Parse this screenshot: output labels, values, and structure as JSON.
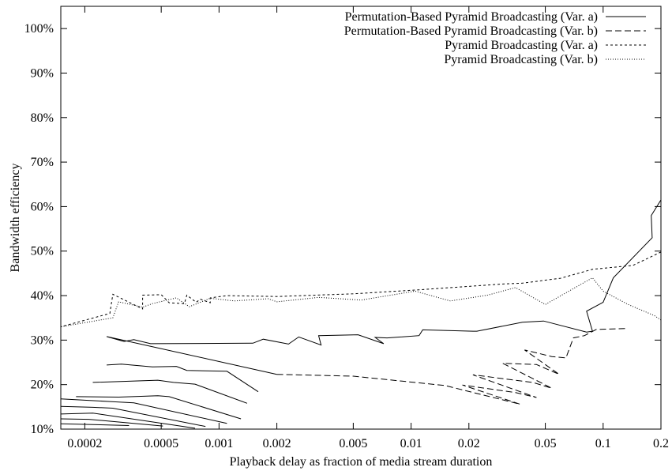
{
  "chart_data": {
    "type": "line",
    "xlabel": "Playback delay as fraction of media stream duration",
    "ylabel": "Bandwidth efficiency",
    "x_scale": "log",
    "xlim": [
      0.00015,
      0.2
    ],
    "ylim": [
      10,
      105
    ],
    "x_ticks": [
      {
        "value": 0.0002,
        "label": "0.0002"
      },
      {
        "value": 0.0005,
        "label": "0.0005"
      },
      {
        "value": 0.001,
        "label": "0.001"
      },
      {
        "value": 0.002,
        "label": "0.002"
      },
      {
        "value": 0.005,
        "label": "0.005"
      },
      {
        "value": 0.01,
        "label": "0.01"
      },
      {
        "value": 0.02,
        "label": "0.02"
      },
      {
        "value": 0.05,
        "label": "0.05"
      },
      {
        "value": 0.1,
        "label": "0.1"
      },
      {
        "value": 0.2,
        "label": "0.2"
      }
    ],
    "y_ticks": [
      {
        "value": 10,
        "label": "10%"
      },
      {
        "value": 20,
        "label": "20%"
      },
      {
        "value": 30,
        "label": "30%"
      },
      {
        "value": 40,
        "label": "40%"
      },
      {
        "value": 50,
        "label": "50%"
      },
      {
        "value": 60,
        "label": "60%"
      },
      {
        "value": 70,
        "label": "70%"
      },
      {
        "value": 80,
        "label": "80%"
      },
      {
        "value": 90,
        "label": "90%"
      },
      {
        "value": 100,
        "label": "100%"
      }
    ],
    "grid": false,
    "legend_position": "top-right",
    "series": [
      {
        "name": "Permutation-Based Pyramid Broadcasting (Var. a)",
        "dash": "solid",
        "segments": [
          [
            [
              0.2,
              61.5
            ],
            [
              0.178,
              58
            ],
            [
              0.18,
              53
            ],
            [
              0.113,
              44
            ],
            [
              0.1,
              38.5
            ],
            [
              0.082,
              36.5
            ],
            [
              0.088,
              32
            ],
            [
              0.082,
              31.8
            ],
            [
              0.049,
              34.3
            ],
            [
              0.038,
              34
            ],
            [
              0.022,
              32
            ],
            [
              0.021,
              32
            ],
            [
              0.0115,
              32.3
            ],
            [
              0.011,
              31
            ],
            [
              0.0075,
              30.5
            ],
            [
              0.0065,
              30.6
            ],
            [
              0.0072,
              29.2
            ],
            [
              0.0053,
              31.2
            ],
            [
              0.0033,
              31
            ],
            [
              0.0034,
              28.9
            ],
            [
              0.0026,
              30.7
            ],
            [
              0.0023,
              29.1
            ],
            [
              0.0017,
              30.2
            ],
            [
              0.0015,
              29.3
            ],
            [
              0.00044,
              29.2
            ],
            [
              0.00036,
              30.1
            ],
            [
              0.00032,
              29.7
            ],
            [
              0.00026,
              30.8
            ],
            [
              0.002,
              22.3
            ]
          ],
          [
            [
              0.00026,
              24.4
            ],
            [
              0.00031,
              24.6
            ],
            [
              0.00045,
              24
            ],
            [
              0.0006,
              24.1
            ],
            [
              0.00068,
              23.2
            ],
            [
              0.0011,
              23
            ],
            [
              0.0016,
              18.4
            ]
          ],
          [
            [
              0.00022,
              20.5
            ],
            [
              0.00048,
              21
            ],
            [
              0.00058,
              20.5
            ],
            [
              0.00075,
              20.1
            ],
            [
              0.0014,
              15.8
            ]
          ],
          [
            [
              0.00018,
              17.3
            ],
            [
              0.0003,
              17.2
            ],
            [
              0.00048,
              17.5
            ],
            [
              0.00055,
              17.3
            ],
            [
              0.0013,
              12.3
            ]
          ],
          [
            [
              0.00015,
              16.8
            ],
            [
              0.00027,
              16.2
            ],
            [
              0.00036,
              15.9
            ],
            [
              0.0011,
              11.3
            ]
          ],
          [
            [
              0.00015,
              15.1
            ],
            [
              0.00022,
              14.9
            ],
            [
              0.00028,
              14.7
            ],
            [
              0.00085,
              10.6
            ]
          ],
          [
            [
              0.00015,
              13.4
            ],
            [
              0.00022,
              13.6
            ],
            [
              0.00075,
              10.2
            ]
          ],
          [
            [
              0.00015,
              12.3
            ],
            [
              0.00021,
              12.2
            ],
            [
              0.00051,
              10.7
            ]
          ],
          [
            [
              0.00015,
              11.2
            ],
            [
              0.00034,
              10.8
            ]
          ]
        ]
      },
      {
        "name": "Permutation-Based Pyramid Broadcasting (Var. b)",
        "dash": "8,4",
        "segments": [
          [
            [
              0.002,
              22.3
            ],
            [
              0.005,
              21.9
            ],
            [
              0.015,
              19.8
            ],
            [
              0.037,
              15.6
            ]
          ],
          [
            [
              0.13,
              32.6
            ],
            [
              0.092,
              32.4
            ],
            [
              0.08,
              31
            ],
            [
              0.07,
              30.5
            ],
            [
              0.064,
              26
            ],
            [
              0.054,
              26.3
            ],
            [
              0.039,
              27.8
            ],
            [
              0.059,
              22.3
            ],
            [
              0.045,
              24.5
            ],
            [
              0.03,
              24.8
            ],
            [
              0.054,
              19.2
            ],
            [
              0.043,
              20.5
            ],
            [
              0.021,
              22.2
            ],
            [
              0.045,
              17.1
            ],
            [
              0.035,
              18.2
            ],
            [
              0.0185,
              19.9
            ],
            [
              0.0375,
              15.5
            ]
          ]
        ]
      },
      {
        "name": "Pyramid Broadcasting (Var. a)",
        "dash": "3,3",
        "segments": [
          [
            [
              0.2,
              49.8
            ],
            [
              0.177,
              48.7
            ],
            [
              0.143,
              46.8
            ],
            [
              0.088,
              45.9
            ],
            [
              0.06,
              43.9
            ],
            [
              0.038,
              42.8
            ],
            [
              0.03,
              42.6
            ],
            [
              0.011,
              41.3
            ],
            [
              0.005,
              40.4
            ],
            [
              0.002,
              39.8
            ],
            [
              0.0011,
              40
            ],
            [
              0.0009,
              39.5
            ],
            [
              0.0009,
              38.4
            ],
            [
              0.0008,
              39.2
            ],
            [
              0.00076,
              38.5
            ],
            [
              0.00068,
              40.1
            ],
            [
              0.00066,
              38.2
            ],
            [
              0.00055,
              38.4
            ],
            [
              0.0005,
              40.2
            ],
            [
              0.0004,
              40.1
            ],
            [
              0.0004,
              37
            ],
            [
              0.00028,
              40.3
            ],
            [
              0.00027,
              36
            ],
            [
              0.00015,
              33
            ]
          ]
        ]
      },
      {
        "name": "Pyramid Broadcasting (Var. b)",
        "dash": "1,2",
        "segments": [
          [
            [
              0.2,
              34.5
            ],
            [
              0.185,
              35.5
            ],
            [
              0.135,
              38
            ],
            [
              0.1,
              41
            ],
            [
              0.088,
              44
            ],
            [
              0.05,
              38
            ],
            [
              0.035,
              41.8
            ],
            [
              0.025,
              40.1
            ],
            [
              0.016,
              38.8
            ],
            [
              0.0105,
              41
            ],
            [
              0.0055,
              39
            ],
            [
              0.0033,
              39.6
            ],
            [
              0.002,
              38.6
            ],
            [
              0.0018,
              39.3
            ],
            [
              0.0012,
              38.8
            ],
            [
              0.0009,
              39.4
            ],
            [
              0.0007,
              37.5
            ],
            [
              0.0006,
              39.5
            ],
            [
              0.00045,
              38.2
            ],
            [
              0.0004,
              37.4
            ],
            [
              0.0003,
              38.6
            ],
            [
              0.00028,
              35
            ],
            [
              0.00015,
              33
            ]
          ]
        ]
      }
    ]
  }
}
